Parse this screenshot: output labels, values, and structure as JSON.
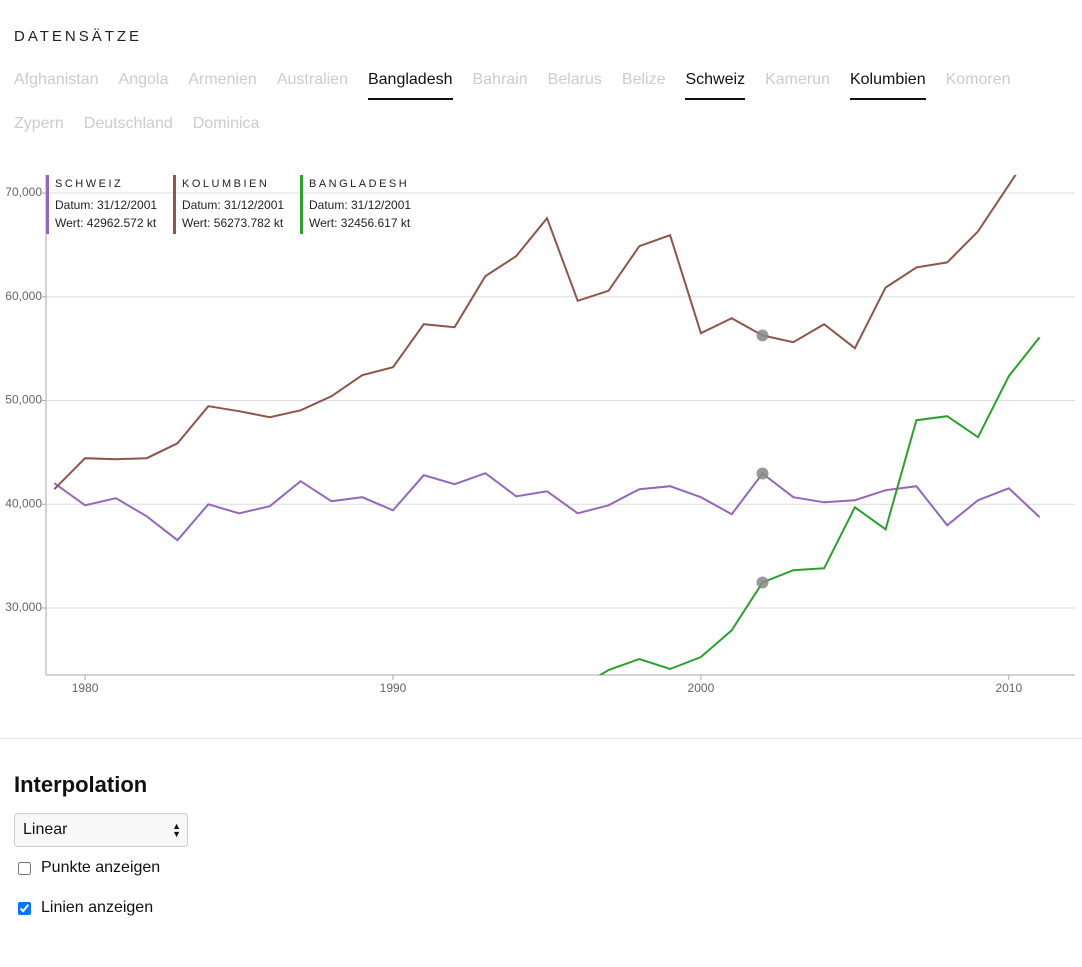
{
  "datasets": {
    "title": "DATENSÄTZE",
    "items": [
      {
        "label": "Afghanistan",
        "selected": false
      },
      {
        "label": "Angola",
        "selected": false
      },
      {
        "label": "Armenien",
        "selected": false
      },
      {
        "label": "Australien",
        "selected": false
      },
      {
        "label": "Bangladesh",
        "selected": true
      },
      {
        "label": "Bahrain",
        "selected": false
      },
      {
        "label": "Belarus",
        "selected": false
      },
      {
        "label": "Belize",
        "selected": false
      },
      {
        "label": "Schweiz",
        "selected": true
      },
      {
        "label": "Kamerun",
        "selected": false
      },
      {
        "label": "Kolumbien",
        "selected": true
      },
      {
        "label": "Komoren",
        "selected": false
      },
      {
        "label": "Zypern",
        "selected": false
      },
      {
        "label": "Deutschland",
        "selected": false
      },
      {
        "label": "Dominica",
        "selected": false
      }
    ]
  },
  "chart_data": {
    "type": "line",
    "x": [
      1979,
      1980,
      1981,
      1982,
      1983,
      1984,
      1985,
      1986,
      1987,
      1988,
      1989,
      1990,
      1991,
      1992,
      1993,
      1994,
      1995,
      1996,
      1997,
      1998,
      1999,
      2000,
      2001,
      2002,
      2003,
      2004,
      2005,
      2006,
      2007,
      2008,
      2009,
      2010,
      2011
    ],
    "series": [
      {
        "name": "Schweiz",
        "color": "#9467bd",
        "values": [
          42025,
          39900,
          40580,
          38840,
          36530,
          40000,
          39130,
          39810,
          42220,
          40290,
          40680,
          39420,
          42800,
          41930,
          42990,
          40770,
          41250,
          39130,
          39900,
          41450,
          41740,
          40680,
          39040,
          42962.572,
          40680,
          40190,
          40390,
          41350,
          41740,
          37970,
          40390,
          41540,
          38750
        ]
      },
      {
        "name": "Kolumbien",
        "color": "#8c564b",
        "values": [
          41450,
          44440,
          44340,
          44440,
          45880,
          49450,
          48970,
          48390,
          49060,
          50410,
          52440,
          53210,
          57360,
          57070,
          61990,
          63920,
          67580,
          59610,
          60580,
          64880,
          65940,
          56490,
          57940,
          56273.782,
          55620,
          57360,
          55040,
          60890,
          62830,
          63310,
          66300,
          70770,
          75300
        ]
      },
      {
        "name": "Bangladesh",
        "color": "#2ca02c",
        "values": [
          null,
          null,
          null,
          null,
          null,
          null,
          null,
          null,
          null,
          null,
          null,
          null,
          null,
          null,
          null,
          null,
          null,
          22200,
          24020,
          25080,
          24120,
          25280,
          27850,
          32456.617,
          33640,
          33830,
          39710,
          37590,
          48100,
          48490,
          46460,
          52340,
          56100
        ]
      }
    ],
    "xlim": [
      1978.73,
      2012.15
    ],
    "xticks": [
      1980,
      1990,
      2000,
      2010
    ],
    "ylim": [
      23540,
      71740
    ],
    "yticks": [
      {
        "value": 30000,
        "label": "30,000"
      },
      {
        "value": 40000,
        "label": "40,000"
      },
      {
        "value": 50000,
        "label": "50,000"
      },
      {
        "value": 60000,
        "label": "60,000"
      },
      {
        "value": 70000,
        "label": "70,000"
      }
    ],
    "grid": true,
    "highlight_index": 23,
    "tooltips": [
      {
        "title": "SCHWEIZ",
        "date": "Datum: 31/12/2001",
        "value": "Wert: 42962.572 kt"
      },
      {
        "title": "KOLUMBIEN",
        "date": "Datum: 31/12/2001",
        "value": "Wert: 56273.782 kt"
      },
      {
        "title": "BANGLADESH",
        "date": "Datum: 31/12/2001",
        "value": "Wert: 32456.617 kt"
      }
    ]
  },
  "controls": {
    "title": "Interpolation",
    "select": "Linear",
    "checkboxes": [
      {
        "label": "Punkte anzeigen",
        "checked": false
      },
      {
        "label": "Linien anzeigen",
        "checked": true
      }
    ]
  }
}
